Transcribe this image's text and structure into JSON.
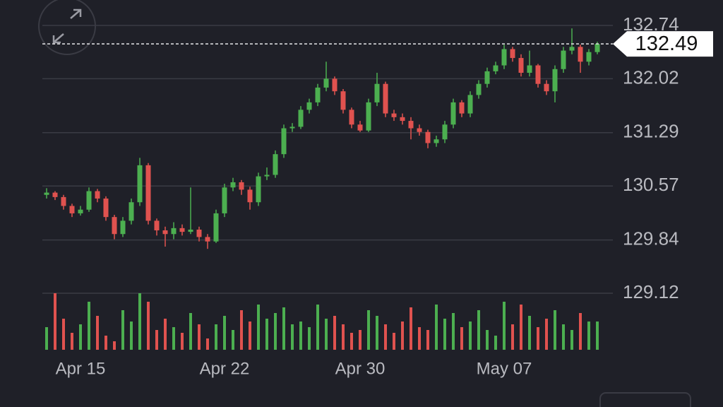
{
  "chart_data": {
    "type": "candlestick",
    "categories": [
      null,
      null,
      null,
      null,
      "Apr 15",
      null,
      null,
      null,
      null,
      null,
      null,
      null,
      null,
      null,
      null,
      null,
      null,
      null,
      null,
      null,
      null,
      "Apr 22",
      null,
      null,
      null,
      null,
      null,
      null,
      null,
      null,
      null,
      null,
      null,
      null,
      null,
      null,
      null,
      "Apr 30",
      null,
      null,
      null,
      null,
      null,
      null,
      null,
      null,
      null,
      null,
      null,
      null,
      null,
      null,
      null,
      null,
      "May 07",
      null,
      null,
      null,
      null,
      null,
      null,
      null,
      null,
      null,
      null,
      null
    ],
    "open": [
      130.45,
      130.48,
      130.42,
      130.3,
      130.2,
      130.25,
      130.5,
      130.4,
      130.15,
      129.92,
      130.1,
      130.35,
      130.85,
      130.1,
      129.97,
      129.92,
      130.0,
      129.95,
      129.98,
      129.88,
      129.82,
      130.2,
      130.55,
      130.62,
      130.52,
      130.35,
      130.7,
      130.72,
      131.0,
      131.35,
      131.37,
      131.6,
      131.7,
      131.9,
      132.02,
      131.85,
      131.6,
      131.4,
      131.32,
      131.7,
      131.95,
      131.55,
      131.5,
      131.45,
      131.35,
      131.3,
      131.15,
      131.2,
      131.4,
      131.7,
      131.55,
      131.8,
      131.95,
      132.12,
      132.2,
      132.42,
      132.3,
      132.1,
      132.2,
      131.95,
      131.85,
      132.15,
      132.4,
      132.45,
      132.25,
      132.38
    ],
    "high": [
      130.54,
      130.5,
      130.45,
      130.33,
      130.3,
      130.55,
      130.53,
      130.43,
      130.18,
      130.15,
      130.4,
      130.95,
      130.88,
      130.13,
      130.02,
      130.08,
      130.05,
      130.55,
      130.02,
      129.92,
      130.25,
      130.6,
      130.68,
      130.65,
      130.56,
      130.75,
      130.82,
      131.05,
      131.4,
      131.42,
      131.65,
      131.75,
      131.95,
      132.25,
      132.05,
      131.88,
      131.63,
      131.45,
      131.75,
      132.1,
      131.98,
      131.6,
      131.55,
      131.5,
      131.4,
      131.33,
      131.25,
      131.45,
      131.75,
      131.73,
      131.85,
      132.0,
      132.17,
      132.25,
      132.48,
      132.45,
      132.35,
      132.4,
      132.22,
      132.0,
      132.2,
      132.45,
      132.7,
      132.48,
      132.42,
      132.52
    ],
    "low": [
      130.4,
      130.38,
      130.25,
      130.15,
      130.17,
      130.22,
      130.35,
      130.1,
      129.85,
      129.88,
      130.05,
      130.3,
      130.05,
      129.9,
      129.75,
      129.85,
      129.9,
      129.92,
      129.82,
      129.72,
      129.8,
      130.15,
      130.5,
      130.45,
      130.25,
      130.3,
      130.65,
      130.68,
      130.95,
      131.3,
      131.34,
      131.55,
      131.65,
      131.85,
      131.8,
      131.55,
      131.35,
      131.3,
      131.3,
      131.65,
      131.5,
      131.45,
      131.4,
      131.2,
      131.25,
      131.08,
      131.1,
      131.15,
      131.35,
      131.5,
      131.5,
      131.75,
      131.9,
      132.08,
      132.15,
      132.25,
      132.05,
      132.05,
      131.9,
      131.8,
      131.7,
      132.1,
      132.35,
      132.1,
      132.2,
      132.35
    ],
    "close": [
      130.48,
      130.42,
      130.3,
      130.2,
      130.25,
      130.5,
      130.4,
      130.15,
      129.92,
      130.1,
      130.35,
      130.85,
      130.1,
      129.97,
      129.92,
      130.0,
      129.95,
      129.98,
      129.88,
      129.82,
      130.2,
      130.55,
      130.62,
      130.52,
      130.35,
      130.7,
      130.72,
      131.0,
      131.35,
      131.37,
      131.6,
      131.7,
      131.9,
      132.02,
      131.85,
      131.6,
      131.4,
      131.32,
      131.7,
      131.95,
      131.55,
      131.5,
      131.45,
      131.35,
      131.3,
      131.15,
      131.2,
      131.4,
      131.7,
      131.55,
      131.8,
      131.95,
      132.12,
      132.2,
      132.42,
      132.3,
      132.1,
      132.2,
      131.95,
      131.85,
      132.15,
      132.4,
      132.45,
      132.25,
      132.38,
      132.49
    ],
    "volume": [
      40,
      100,
      55,
      30,
      45,
      85,
      60,
      25,
      15,
      70,
      50,
      100,
      85,
      35,
      55,
      40,
      30,
      65,
      45,
      20,
      45,
      60,
      35,
      70,
      50,
      80,
      55,
      65,
      75,
      45,
      50,
      40,
      80,
      55,
      60,
      45,
      30,
      35,
      70,
      60,
      45,
      30,
      50,
      75,
      40,
      35,
      80,
      55,
      65,
      40,
      50,
      70,
      35,
      25,
      85,
      45,
      80,
      60,
      40,
      55,
      70,
      45,
      35,
      65,
      50,
      50
    ],
    "up_color": "#4caf50",
    "down_color": "#e0524f",
    "ylim": [
      129.12,
      132.74
    ],
    "yticks": [
      129.12,
      129.84,
      130.57,
      131.29,
      132.02,
      132.74
    ],
    "grid": true,
    "last_price": 132.49
  }
}
